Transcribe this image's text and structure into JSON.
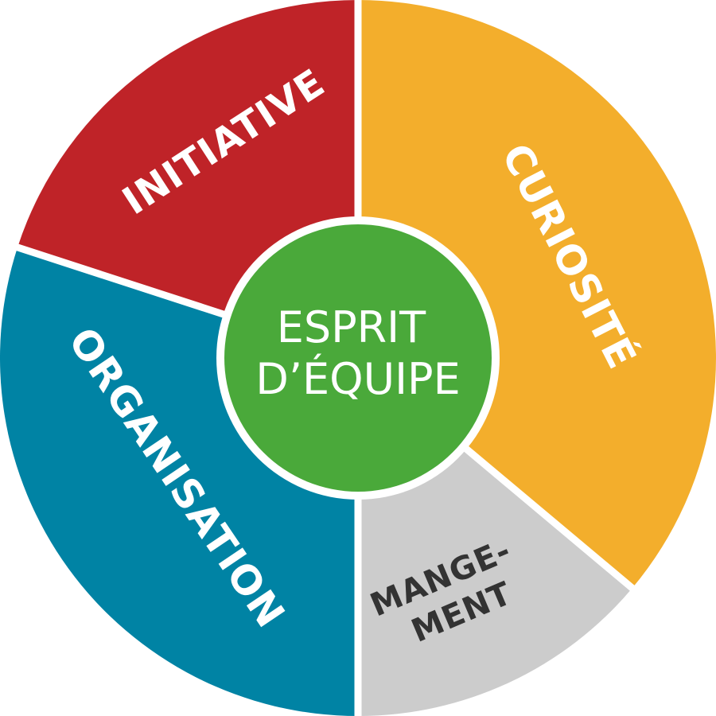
{
  "diagram": {
    "center": {
      "lines": [
        "ESPRIT",
        "D’ÉQUIPE"
      ],
      "color": "#4aa93a",
      "text_color": "#ffffff"
    },
    "segments": [
      {
        "key": "curiosite",
        "lines": [
          "CURIOSITÉ"
        ],
        "color": "#f3ae2c",
        "text_color": "#ffffff"
      },
      {
        "key": "management",
        "lines": [
          "MANGE-",
          "MENT"
        ],
        "color": "#cccccc",
        "text_color": "#333333"
      },
      {
        "key": "organisation",
        "lines": [
          "ORGANISATION"
        ],
        "color": "#0083a4",
        "text_color": "#ffffff"
      },
      {
        "key": "initiative",
        "lines": [
          "INITIATIVE"
        ],
        "color": "#bf2328",
        "text_color": "#ffffff"
      }
    ],
    "separator_color": "#ffffff"
  }
}
